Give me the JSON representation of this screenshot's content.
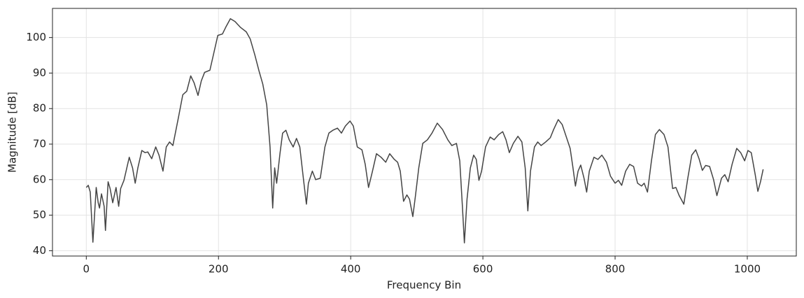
{
  "chart_data": {
    "type": "line",
    "x_label": "Frequency Bin",
    "y_label": "Magnitude [dB]",
    "x": [
      0,
      3,
      6,
      10,
      15,
      18,
      20,
      23,
      27,
      29,
      33,
      36,
      40,
      45,
      49,
      52,
      57,
      65,
      70,
      74,
      78,
      84,
      89,
      93,
      99,
      105,
      110,
      116,
      121,
      126,
      131,
      139,
      146,
      152,
      158,
      163,
      169,
      174,
      179,
      187,
      193,
      199,
      206,
      211,
      218,
      225,
      233,
      242,
      248,
      255,
      261,
      267,
      273,
      278,
      282,
      285,
      288,
      293,
      297,
      302,
      307,
      313,
      318,
      323,
      329,
      333,
      336,
      342,
      347,
      354,
      361,
      367,
      373,
      380,
      386,
      392,
      399,
      404,
      410,
      417,
      422,
      427,
      433,
      439,
      446,
      453,
      459,
      466,
      471,
      475,
      480,
      485,
      489,
      494,
      498,
      503,
      509,
      516,
      523,
      531,
      539,
      547,
      553,
      560,
      565,
      569,
      572,
      576,
      581,
      586,
      590,
      594,
      598,
      604,
      611,
      617,
      624,
      630,
      635,
      640,
      646,
      653,
      659,
      664,
      668,
      672,
      678,
      683,
      688,
      695,
      702,
      707,
      714,
      720,
      725,
      732,
      736,
      740,
      744,
      748,
      753,
      757,
      761,
      768,
      774,
      780,
      787,
      793,
      800,
      805,
      810,
      816,
      822,
      828,
      834,
      840,
      844,
      849,
      855,
      861,
      867,
      874,
      880,
      887,
      892,
      897,
      904,
      910,
      916,
      922,
      927,
      932,
      937,
      943,
      949,
      954,
      961,
      966,
      971,
      977,
      984,
      990,
      996,
      1001,
      1006,
      1012,
      1016,
      1020,
      1024
    ],
    "series": [
      {
        "color": "#444444",
        "values": [
          57.8,
          58.4,
          56.5,
          42.4,
          57.8,
          53.5,
          52,
          56,
          52.5,
          45.7,
          59.4,
          57.5,
          53.5,
          57.8,
          52.5,
          57.5,
          59.8,
          66.3,
          63.3,
          59,
          63.3,
          68.2,
          67.6,
          67.8,
          65.9,
          69.2,
          66.9,
          62.4,
          69.2,
          70.6,
          69.6,
          77.1,
          83.9,
          84.9,
          89.2,
          87.3,
          83.7,
          87.8,
          90.2,
          90.8,
          95.7,
          100.6,
          101,
          102.9,
          105.3,
          104.5,
          102.9,
          101.6,
          99.6,
          95.1,
          90.8,
          86.9,
          81,
          69.2,
          52,
          63.3,
          59,
          67.3,
          73.1,
          73.9,
          71.2,
          69.2,
          71.6,
          69.2,
          59.4,
          53.1,
          59,
          62.4,
          60,
          60.4,
          69.2,
          73.1,
          73.9,
          74.5,
          73.1,
          75.1,
          76.5,
          75.1,
          69.2,
          68.4,
          64.3,
          57.8,
          62.4,
          67.3,
          66.3,
          64.9,
          67.3,
          65.7,
          64.9,
          62.4,
          53.9,
          55.7,
          54.5,
          49.6,
          55.5,
          63.3,
          70.2,
          71.2,
          73.1,
          75.9,
          74.1,
          71.2,
          69.6,
          70.2,
          65.3,
          52.5,
          42.2,
          54.5,
          63.3,
          66.9,
          65.7,
          59.8,
          62.4,
          69.2,
          72,
          71.2,
          72.7,
          73.5,
          71.2,
          67.6,
          70.2,
          72.2,
          70.6,
          63.3,
          51.2,
          62.4,
          69.2,
          70.6,
          69.6,
          70.6,
          71.8,
          74.1,
          76.9,
          75.5,
          72.7,
          68.8,
          63.7,
          58.2,
          62.4,
          64.1,
          60.4,
          56.5,
          62.4,
          66.3,
          65.7,
          66.9,
          64.9,
          61,
          59,
          59.8,
          58.4,
          62.4,
          64.3,
          63.7,
          59,
          58.2,
          59,
          56.5,
          65.3,
          72.7,
          74.1,
          72.7,
          69.2,
          57.5,
          57.8,
          55.5,
          53.1,
          60.4,
          66.9,
          68.4,
          65.9,
          62.6,
          64,
          63.7,
          60,
          55.5,
          60.4,
          61.4,
          59.4,
          64.3,
          68.8,
          67.6,
          65.3,
          68.2,
          67.6,
          61.4,
          56.7,
          59.4,
          62.9
        ]
      }
    ],
    "xlim": [
      -51.15,
      1074.15
    ],
    "ylim": [
      38.5,
      108.2
    ],
    "xticks": [
      0,
      200,
      400,
      600,
      800,
      1000
    ],
    "yticks": [
      40,
      50,
      60,
      70,
      80,
      90,
      100
    ],
    "grid": true
  }
}
